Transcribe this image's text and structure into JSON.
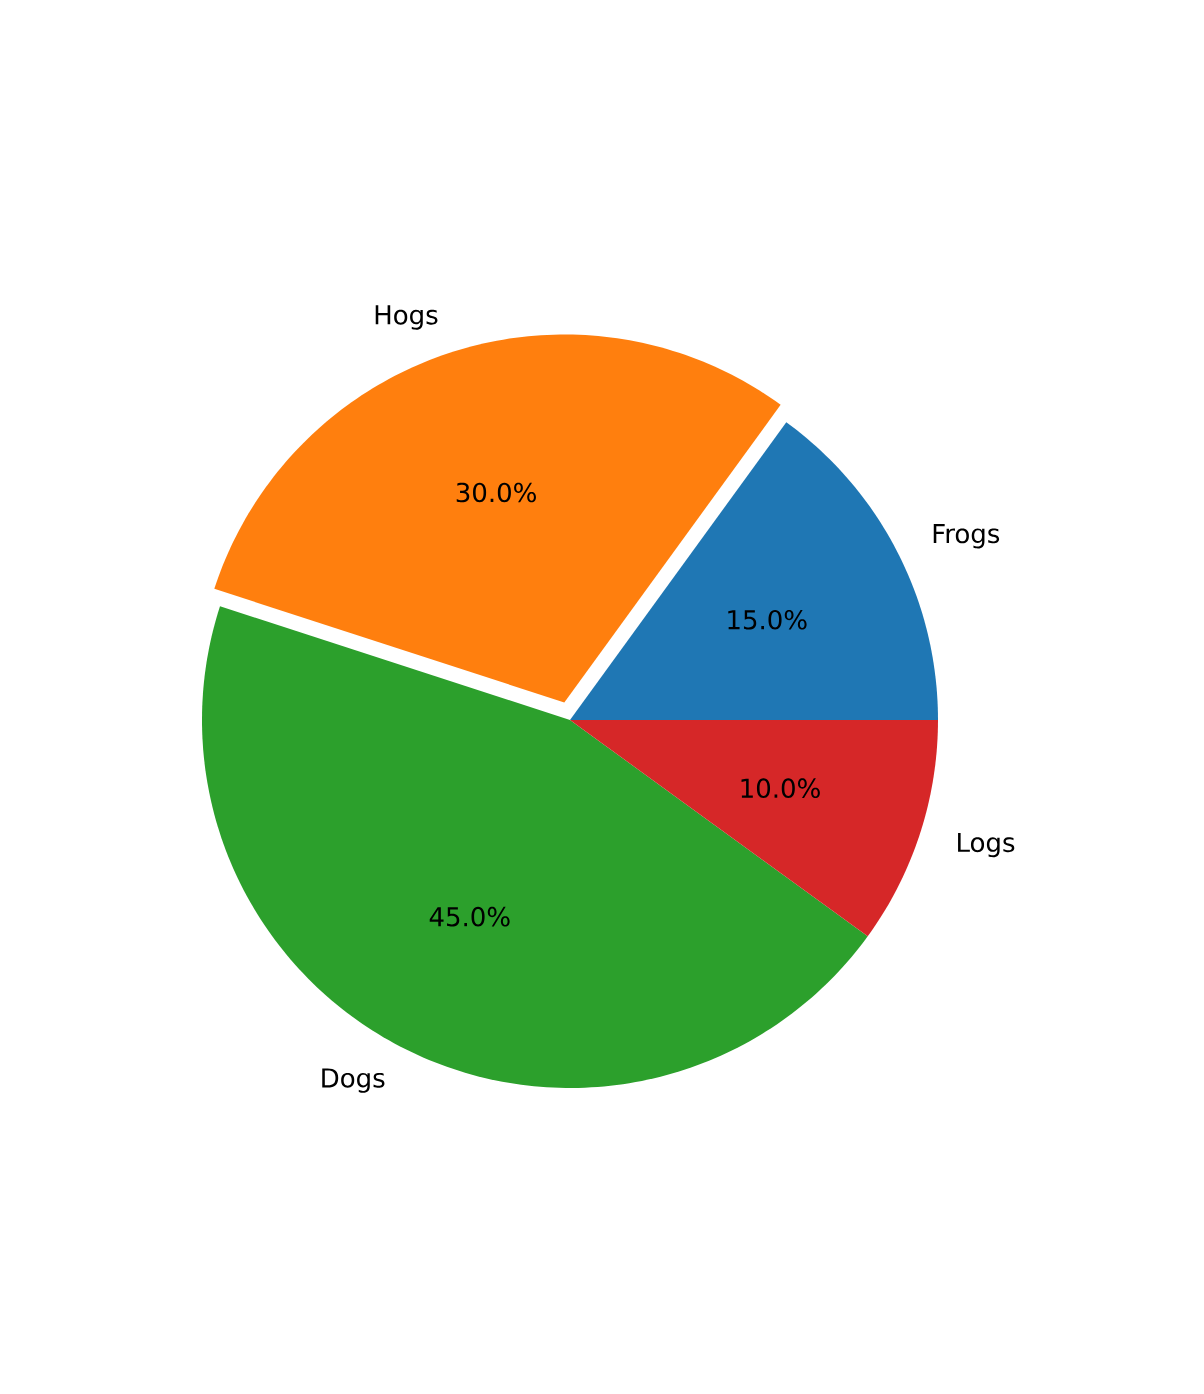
{
  "chart_data": {
    "type": "pie",
    "categories": [
      "Frogs",
      "Hogs",
      "Dogs",
      "Logs"
    ],
    "values": [
      15,
      30,
      45,
      10
    ],
    "colors": [
      "#1f77b4",
      "#ff7f0e",
      "#2ca02c",
      "#d62728"
    ],
    "value_labels": [
      "15.0%",
      "30.0%",
      "45.0%",
      "10.0%"
    ]
  }
}
